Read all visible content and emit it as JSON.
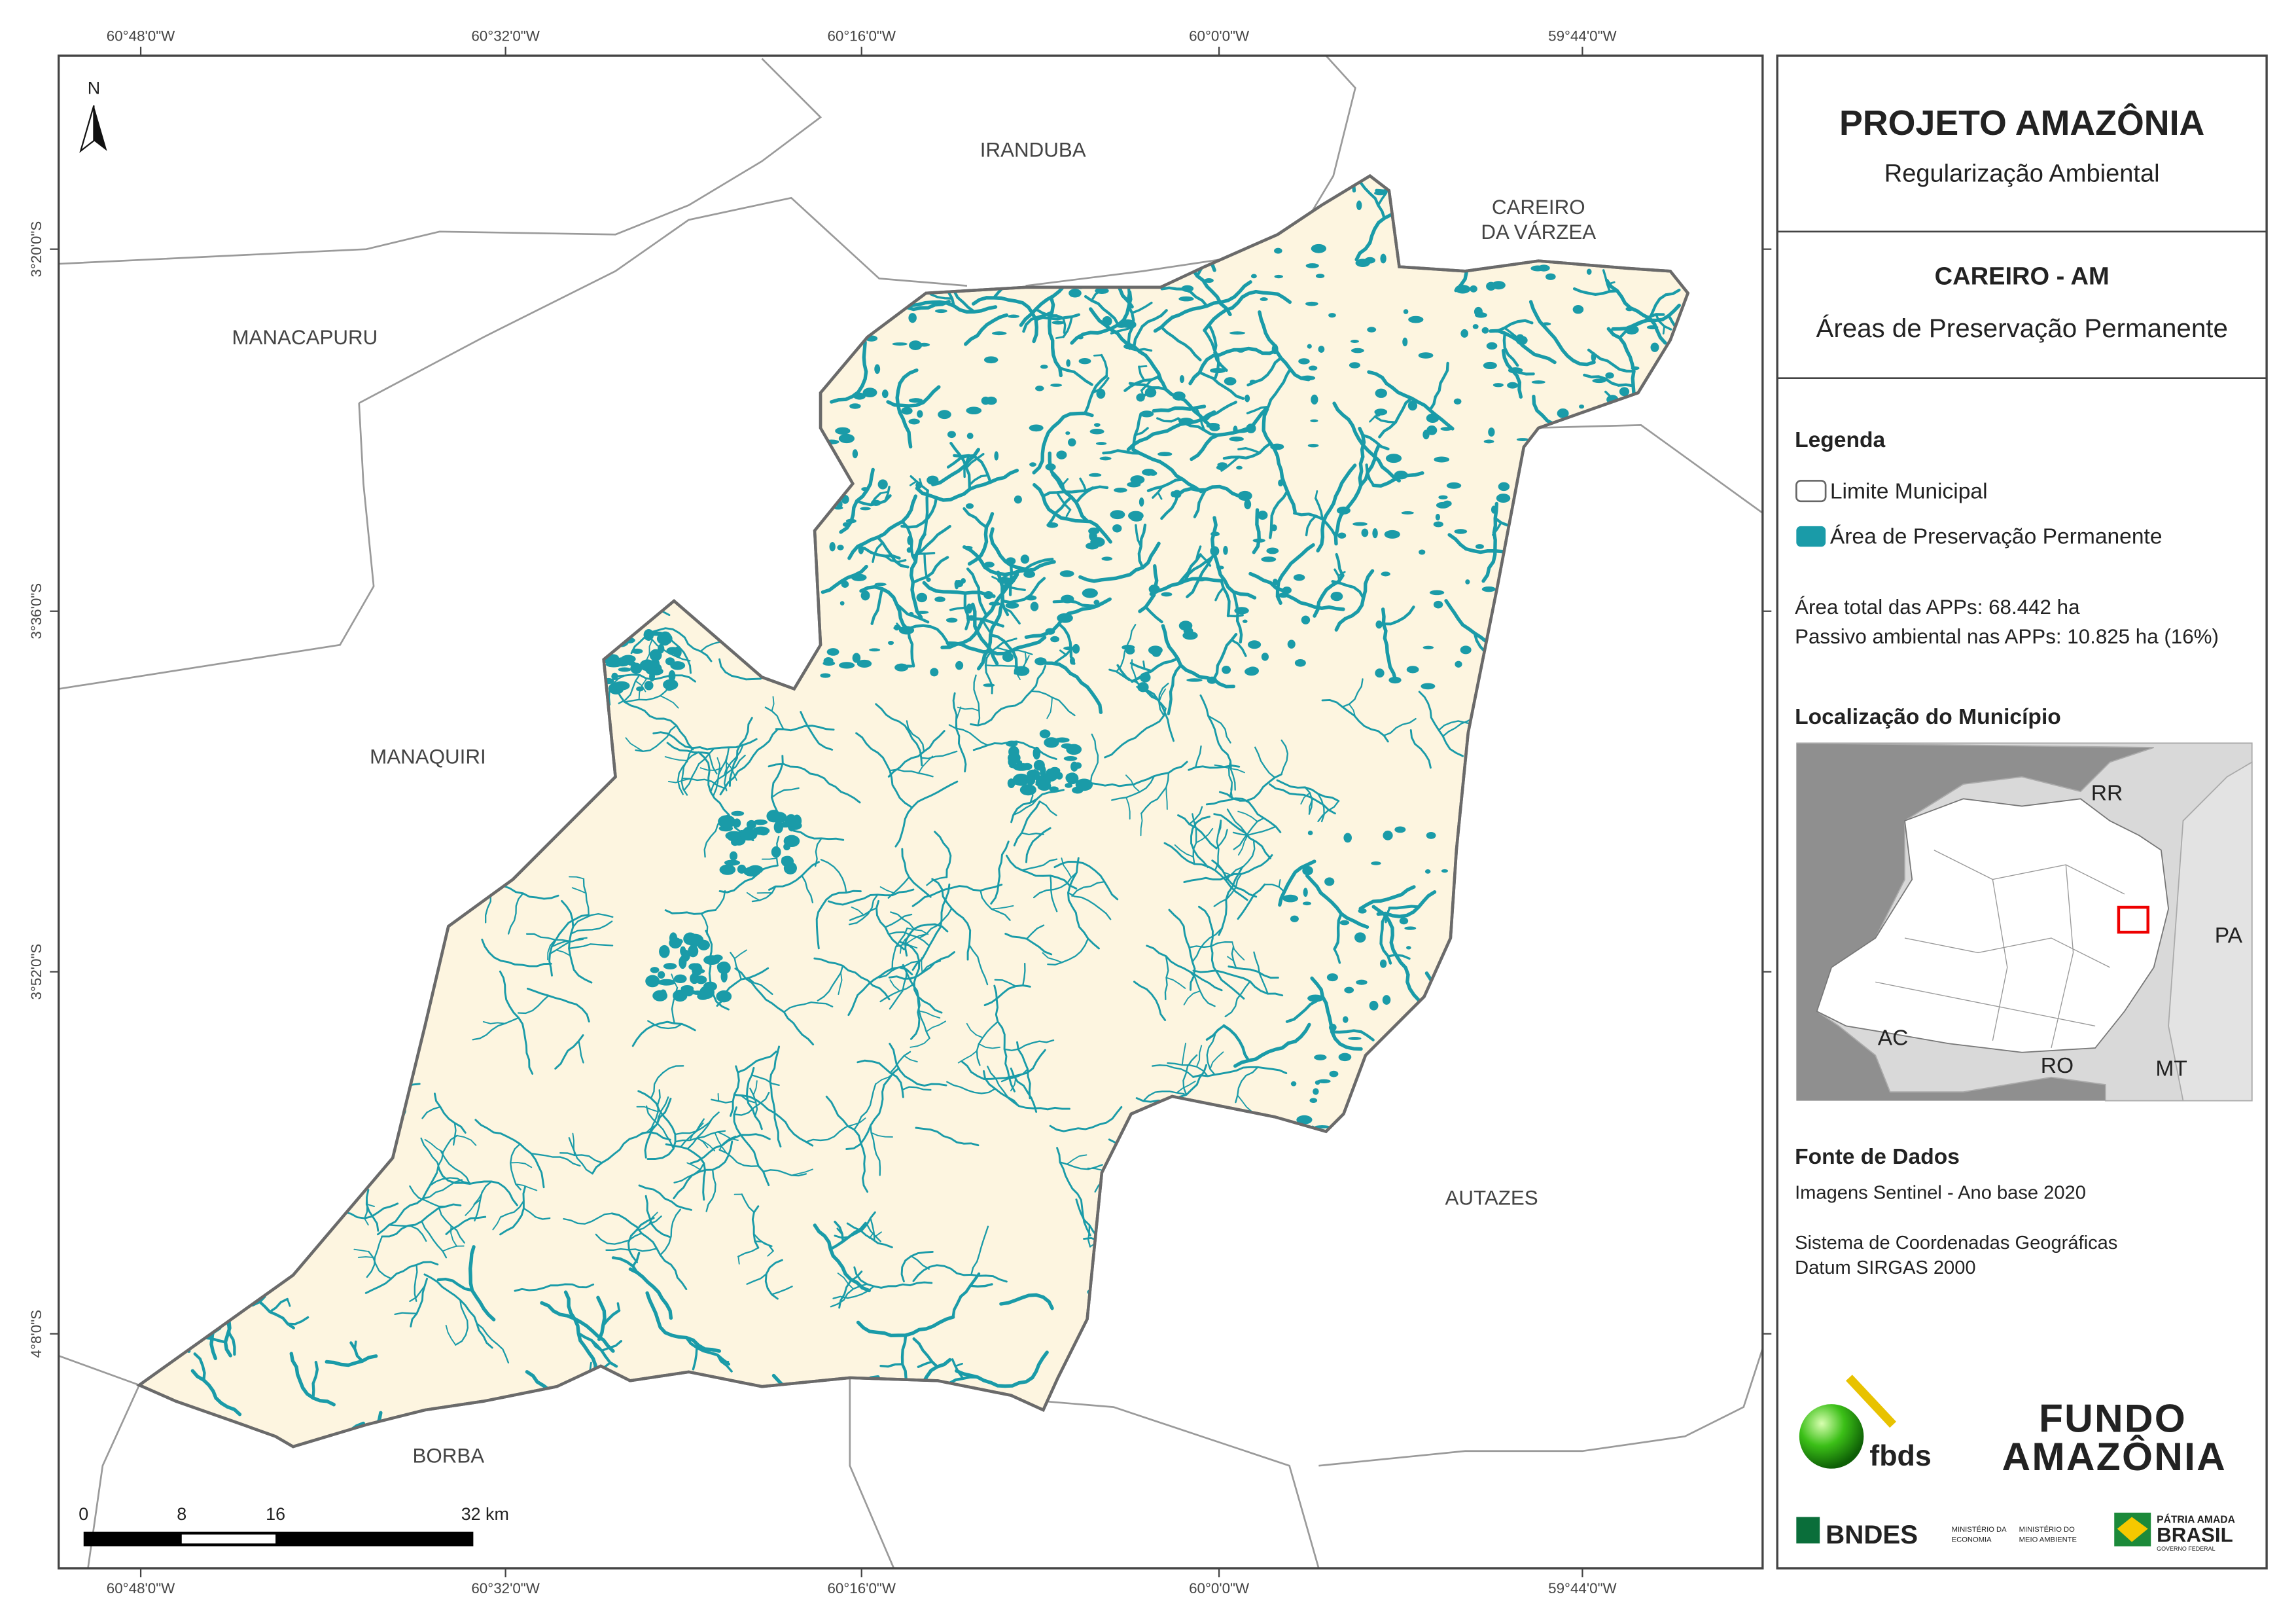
{
  "map": {
    "longitude_labels": [
      "60°48'0\"W",
      "60°32'0\"W",
      "60°16'0\"W",
      "60°0'0\"W",
      "59°44'0\"W"
    ],
    "latitude_labels": [
      "3°20'0\"S",
      "3°36'0\"S",
      "3°52'0\"S",
      "4°8'0\"S"
    ],
    "north_label": "N",
    "municipality_labels": [
      "IRANDUBA",
      "CAREIRO",
      "DA VÁRZEA",
      "MANACAPURU",
      "MANAQUIRI",
      "AUTAZES",
      "BORBA"
    ],
    "scale_labels": [
      "0",
      "8",
      "16",
      "32 km"
    ]
  },
  "panel": {
    "title": "PROJETO AMAZÔNIA",
    "subtitle": "Regularização Ambiental",
    "municipality": "CAREIRO - AM",
    "theme": "Áreas de Preservação Permanente",
    "legend_title": "Legenda",
    "legend_items": [
      "Limite Municipal",
      "Área de Preservação Permanente"
    ],
    "stats": [
      "Área total das APPs: 68.442 ha",
      "Passivo ambiental nas APPs: 10.825 ha (16%)"
    ],
    "location_title": "Localização do Município",
    "inset_labels": [
      "RR",
      "PA",
      "AC",
      "RO",
      "MT"
    ],
    "source_title": "Fonte de Dados",
    "source_lines": [
      "Imagens Sentinel - Ano base 2020",
      "Sistema de Coordenadas Geográficas",
      "Datum SIRGAS 2000"
    ],
    "logos": [
      "fbds",
      "FUNDO",
      "AMAZÔNIA",
      "BNDES",
      "MINISTÉRIO DA",
      "ECONOMIA",
      "MINISTÉRIO DO",
      "MEIO AMBIENTE",
      "PÁTRIA AMADA",
      "BRASIL",
      "GOVERNO FEDERAL"
    ]
  }
}
